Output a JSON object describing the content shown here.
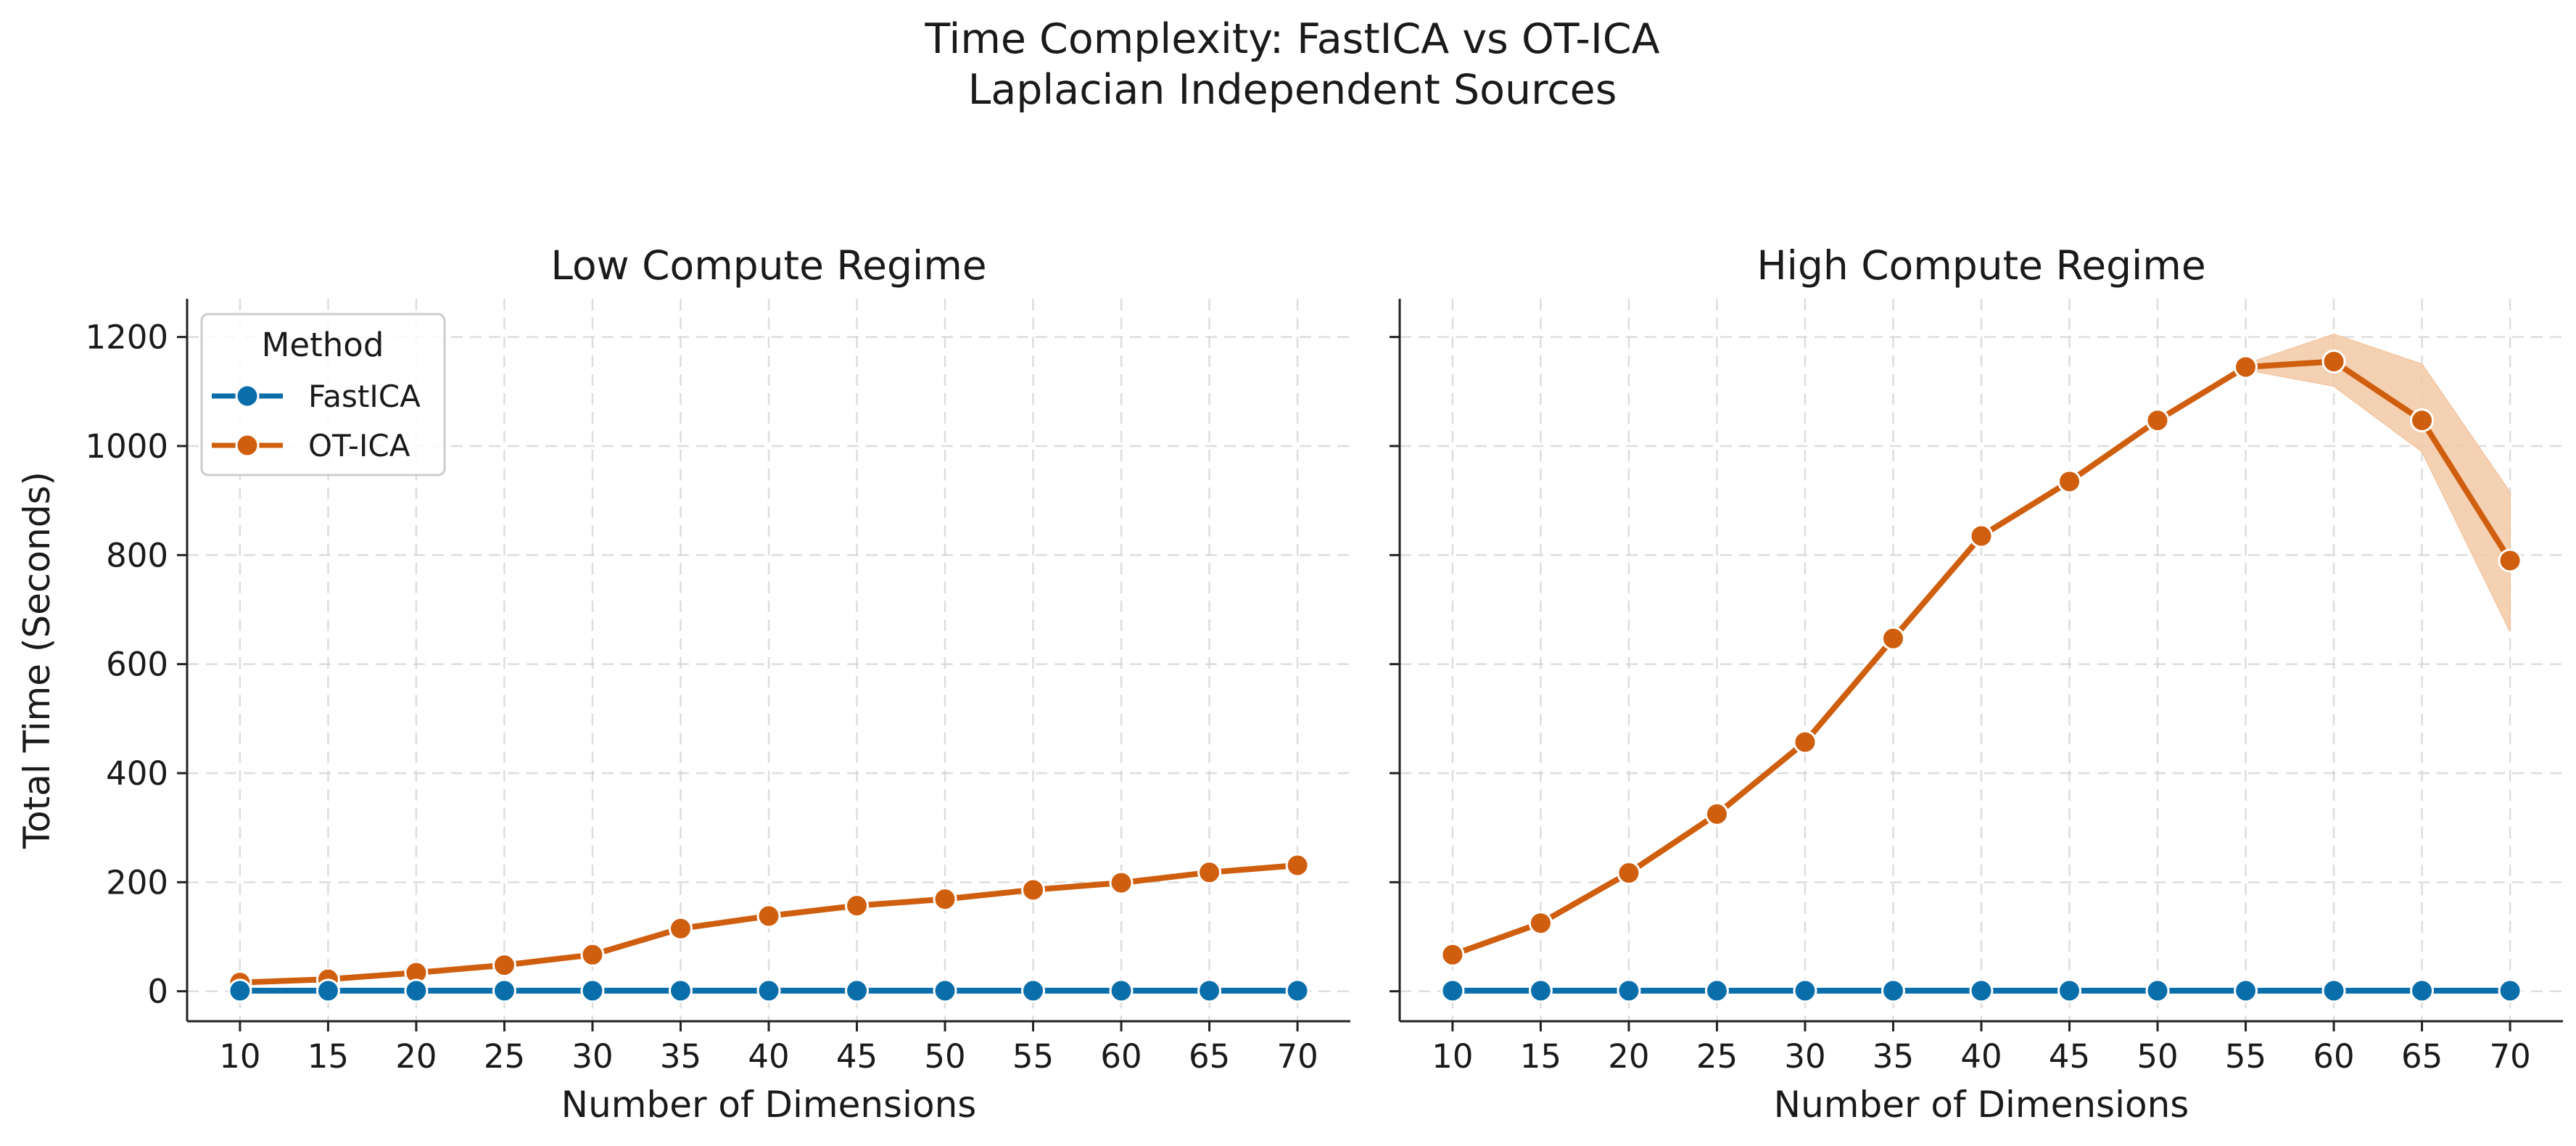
{
  "figure": {
    "suptitle_line1": "Time Complexity: FastICA vs OT-ICA",
    "suptitle_line2": "Laplacian Independent Sources"
  },
  "legend": {
    "title": "Method",
    "placement": "upper-left of left panel"
  },
  "colors": {
    "fastica": "#0a6eab",
    "otica": "#cf5e0e",
    "otica_band": "#f3c9a6"
  },
  "chart_data": [
    {
      "type": "line",
      "title": "Low Compute Regime",
      "xlabel": "Number of Dimensions",
      "ylabel": "Total Time (Seconds)",
      "x": [
        10,
        15,
        20,
        25,
        30,
        35,
        40,
        45,
        50,
        55,
        60,
        65,
        70
      ],
      "ylim": [
        -55,
        1270
      ],
      "yticks": [
        0,
        200,
        400,
        600,
        800,
        1000,
        1200
      ],
      "grid": true,
      "legend": "upper-left",
      "series": [
        {
          "name": "FastICA",
          "values": [
            1,
            1,
            1,
            1,
            1,
            1,
            1,
            1,
            1,
            1,
            1,
            1,
            1
          ]
        },
        {
          "name": "OT-ICA",
          "values": [
            16,
            22,
            34,
            48,
            67,
            115,
            138,
            157,
            169,
            186,
            199,
            218,
            231
          ]
        }
      ]
    },
    {
      "type": "line",
      "title": "High Compute Regime",
      "xlabel": "Number of Dimensions",
      "ylabel": "",
      "x": [
        10,
        15,
        20,
        25,
        30,
        35,
        40,
        45,
        50,
        55,
        60,
        65,
        70
      ],
      "ylim": [
        -55,
        1270
      ],
      "yticks": [
        0,
        200,
        400,
        600,
        800,
        1000,
        1200
      ],
      "grid": true,
      "series": [
        {
          "name": "FastICA",
          "values": [
            1,
            1,
            1,
            1,
            1,
            1,
            1,
            1,
            1,
            1,
            1,
            1,
            1
          ]
        },
        {
          "name": "OT-ICA",
          "values": [
            67,
            125,
            217,
            325,
            457,
            647,
            835,
            935,
            1047,
            1145,
            1155,
            1047,
            790
          ],
          "ci_lower": [
            67,
            125,
            217,
            325,
            457,
            647,
            835,
            935,
            1047,
            1140,
            1110,
            990,
            660
          ],
          "ci_upper": [
            67,
            125,
            217,
            325,
            457,
            647,
            835,
            935,
            1047,
            1150,
            1205,
            1150,
            915
          ]
        }
      ]
    }
  ]
}
